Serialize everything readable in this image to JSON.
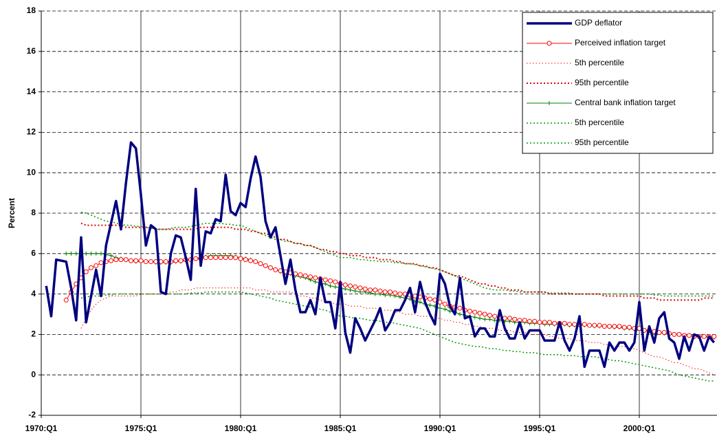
{
  "chart_data": {
    "type": "line",
    "y_label": "Percent",
    "categories": [
      "1970:Q1",
      null,
      null,
      null,
      null,
      null,
      null,
      null,
      null,
      null,
      null,
      null,
      null,
      null,
      null,
      null,
      null,
      null,
      null,
      null,
      "1975:Q1",
      null,
      null,
      null,
      null,
      null,
      null,
      null,
      null,
      null,
      null,
      null,
      null,
      null,
      null,
      null,
      null,
      null,
      null,
      null,
      "1980:Q1",
      null,
      null,
      null,
      null,
      null,
      null,
      null,
      null,
      null,
      null,
      null,
      null,
      null,
      null,
      null,
      null,
      null,
      null,
      null,
      "1985:Q1",
      null,
      null,
      null,
      null,
      null,
      null,
      null,
      null,
      null,
      null,
      null,
      null,
      null,
      null,
      null,
      null,
      null,
      null,
      null,
      "1990:Q1",
      null,
      null,
      null,
      null,
      null,
      null,
      null,
      null,
      null,
      null,
      null,
      null,
      null,
      null,
      null,
      null,
      null,
      null,
      null,
      "1995:Q1",
      null,
      null,
      null,
      null,
      null,
      null,
      null,
      null,
      null,
      null,
      null,
      null,
      null,
      null,
      null,
      null,
      null,
      null,
      null,
      "2000:Q1",
      null,
      null,
      null,
      null,
      null,
      null,
      null,
      null,
      null,
      null,
      null,
      null,
      null,
      null,
      null
    ],
    "ylim": [
      -2,
      18
    ],
    "yticks": [
      -2,
      0,
      2,
      4,
      6,
      8,
      10,
      12,
      14,
      16,
      18
    ],
    "grid": true,
    "legend": "top-right",
    "series": [
      {
        "name": "GDP deflator",
        "color": "#000080",
        "width": 3.5,
        "dash": "solid",
        "marker": "none",
        "values": [
          null,
          4.4,
          2.9,
          5.7,
          5.65,
          5.6,
          4.3,
          2.7,
          6.8,
          2.6,
          3.9,
          5.2,
          3.9,
          6.4,
          7.5,
          8.6,
          7.2,
          9.5,
          11.5,
          11.2,
          8.9,
          6.4,
          7.4,
          7.2,
          4.1,
          4.0,
          6.0,
          6.9,
          6.8,
          5.8,
          4.7,
          9.2,
          5.4,
          7.1,
          7.0,
          7.7,
          7.6,
          9.9,
          8.1,
          7.9,
          8.5,
          8.3,
          9.7,
          10.8,
          9.8,
          7.6,
          6.8,
          7.3,
          5.9,
          4.5,
          5.7,
          4.2,
          3.1,
          3.1,
          3.7,
          3.0,
          4.8,
          3.6,
          3.6,
          2.3,
          4.6,
          2.1,
          1.1,
          2.8,
          2.3,
          1.7,
          2.2,
          2.7,
          3.3,
          2.2,
          2.6,
          3.2,
          3.2,
          3.7,
          4.3,
          3.1,
          4.6,
          3.6,
          3.0,
          2.5,
          5.0,
          4.5,
          3.4,
          3.0,
          4.8,
          2.8,
          2.9,
          1.9,
          2.3,
          2.3,
          1.9,
          1.9,
          3.2,
          2.3,
          1.8,
          1.8,
          2.6,
          1.8,
          2.2,
          2.2,
          2.2,
          1.7,
          1.7,
          1.7,
          2.6,
          1.7,
          1.2,
          1.8,
          2.9,
          0.4,
          1.2,
          1.2,
          1.2,
          0.4,
          1.6,
          1.2,
          1.6,
          1.6,
          1.2,
          1.6,
          3.6,
          1.2,
          2.4,
          1.6,
          2.8,
          3.1,
          1.8,
          1.6,
          0.8,
          1.9,
          1.2,
          2.0,
          1.9,
          1.2,
          1.9,
          1.6
        ]
      },
      {
        "name": "Perceived inflation target",
        "color": "#ff0000",
        "width": 1,
        "dash": "solid",
        "marker": "circle",
        "values": [
          null,
          null,
          null,
          null,
          null,
          3.7,
          4.1,
          4.5,
          4.8,
          5.1,
          5.3,
          5.4,
          5.55,
          5.6,
          5.65,
          5.7,
          5.7,
          5.7,
          5.65,
          5.65,
          5.65,
          5.6,
          5.6,
          5.6,
          5.6,
          5.6,
          5.6,
          5.65,
          5.65,
          5.7,
          5.7,
          5.75,
          5.75,
          5.8,
          5.8,
          5.8,
          5.8,
          5.8,
          5.8,
          5.8,
          5.75,
          5.7,
          5.65,
          5.6,
          5.5,
          5.4,
          5.3,
          5.2,
          5.15,
          5.1,
          5.05,
          5.0,
          4.95,
          4.9,
          4.85,
          4.8,
          4.75,
          4.7,
          4.65,
          4.6,
          4.5,
          4.45,
          4.4,
          4.35,
          4.3,
          4.25,
          4.2,
          4.2,
          4.15,
          4.1,
          4.1,
          4.05,
          4.0,
          4.0,
          3.95,
          3.9,
          3.85,
          3.8,
          3.75,
          3.7,
          3.6,
          3.5,
          3.4,
          3.35,
          3.3,
          3.2,
          3.15,
          3.1,
          3.05,
          3.0,
          2.95,
          2.9,
          2.85,
          2.8,
          2.8,
          2.75,
          2.7,
          2.7,
          2.65,
          2.65,
          2.6,
          2.6,
          2.6,
          2.55,
          2.55,
          2.55,
          2.5,
          2.5,
          2.5,
          2.5,
          2.45,
          2.45,
          2.45,
          2.4,
          2.4,
          2.4,
          2.4,
          2.35,
          2.35,
          2.3,
          2.3,
          2.2,
          2.2,
          2.15,
          2.1,
          2.1,
          2.05,
          2.0,
          2.0,
          1.95,
          1.95,
          1.9,
          1.9,
          1.9,
          1.9,
          1.9
        ]
      },
      {
        "name": "5th percentile",
        "color": "#ff0000",
        "width": 1,
        "dash": "dotted",
        "marker": "none",
        "values": [
          null,
          null,
          null,
          null,
          null,
          null,
          null,
          null,
          2.3,
          2.8,
          3.2,
          3.5,
          3.7,
          3.8,
          3.9,
          3.9,
          3.9,
          3.9,
          3.9,
          3.9,
          4.0,
          4.0,
          4.0,
          4.0,
          4.0,
          4.0,
          4.1,
          4.1,
          4.2,
          4.2,
          4.2,
          4.3,
          4.3,
          4.3,
          4.3,
          4.3,
          4.3,
          4.3,
          4.3,
          4.3,
          4.3,
          4.3,
          4.3,
          4.2,
          4.2,
          4.2,
          4.1,
          4.1,
          4.1,
          4.1,
          4.1,
          4.0,
          3.9,
          3.9,
          3.8,
          3.8,
          3.7,
          3.6,
          3.6,
          3.5,
          3.5,
          3.5,
          3.4,
          3.4,
          3.4,
          3.3,
          3.3,
          3.3,
          3.2,
          3.2,
          3.2,
          3.1,
          3.1,
          3.0,
          3.0,
          3.0,
          2.9,
          2.9,
          2.9,
          2.8,
          2.8,
          2.7,
          2.7,
          2.6,
          2.6,
          2.5,
          2.5,
          2.4,
          2.4,
          2.3,
          2.3,
          2.3,
          2.2,
          2.2,
          2.2,
          2.1,
          2.1,
          2.1,
          2.0,
          2.0,
          2.0,
          2.0,
          1.9,
          1.9,
          1.8,
          1.8,
          1.8,
          1.7,
          1.7,
          1.7,
          1.6,
          1.6,
          1.6,
          1.5,
          1.5,
          1.4,
          1.4,
          1.4,
          1.3,
          1.3,
          1.2,
          1.1,
          1.0,
          0.9,
          0.9,
          0.8,
          0.7,
          0.6,
          0.6,
          0.5,
          0.4,
          0.3,
          0.3,
          0.2,
          0.1,
          0.0
        ]
      },
      {
        "name": "95th percentile",
        "color": "#dd0000",
        "width": 2,
        "dash": "dotted",
        "marker": "none",
        "values": [
          null,
          null,
          null,
          null,
          null,
          null,
          null,
          null,
          7.5,
          7.4,
          7.4,
          7.4,
          7.4,
          7.4,
          7.4,
          7.4,
          7.4,
          7.3,
          7.3,
          7.3,
          7.3,
          7.3,
          7.3,
          7.2,
          7.2,
          7.2,
          7.2,
          7.2,
          7.2,
          7.2,
          7.2,
          7.2,
          7.3,
          7.3,
          7.3,
          7.3,
          7.3,
          7.3,
          7.3,
          7.2,
          7.2,
          7.2,
          7.1,
          7.1,
          7.0,
          7.0,
          6.9,
          6.8,
          6.7,
          6.7,
          6.6,
          6.5,
          6.5,
          6.4,
          6.4,
          6.3,
          6.2,
          6.2,
          6.1,
          6.1,
          6.0,
          6.0,
          5.9,
          5.9,
          5.9,
          5.8,
          5.8,
          5.8,
          5.7,
          5.7,
          5.7,
          5.6,
          5.6,
          5.5,
          5.5,
          5.5,
          5.4,
          5.4,
          5.3,
          5.3,
          5.2,
          5.1,
          5.0,
          4.9,
          4.9,
          4.8,
          4.7,
          4.6,
          4.5,
          4.5,
          4.4,
          4.4,
          4.3,
          4.3,
          4.2,
          4.2,
          4.2,
          4.1,
          4.1,
          4.1,
          4.1,
          4.1,
          4.0,
          4.0,
          4.0,
          4.0,
          4.0,
          4.0,
          4.0,
          4.0,
          4.0,
          4.0,
          4.0,
          3.9,
          3.9,
          3.9,
          3.9,
          3.9,
          3.9,
          3.9,
          3.9,
          3.8,
          3.8,
          3.8,
          3.7,
          3.7,
          3.7,
          3.7,
          3.7,
          3.7,
          3.7,
          3.7,
          3.7,
          3.8,
          3.8,
          3.8
        ]
      },
      {
        "name": "Central bank inflation target",
        "color": "#008000",
        "width": 1,
        "dash": "solid",
        "marker": "plus",
        "values": [
          null,
          null,
          null,
          null,
          null,
          6.0,
          6.0,
          6.0,
          6.0,
          6.0,
          6.0,
          6.0,
          6.0,
          5.95,
          5.9,
          5.8,
          5.75,
          5.7,
          5.65,
          5.6,
          5.6,
          5.6,
          5.6,
          5.55,
          5.55,
          5.55,
          5.55,
          5.6,
          5.6,
          5.65,
          5.7,
          5.75,
          5.8,
          5.85,
          5.9,
          5.9,
          5.9,
          5.9,
          5.9,
          5.85,
          5.8,
          5.75,
          5.7,
          5.6,
          5.5,
          5.4,
          5.3,
          5.2,
          5.1,
          5.05,
          5.0,
          4.9,
          4.85,
          4.8,
          4.7,
          4.6,
          4.55,
          4.5,
          4.4,
          4.35,
          4.3,
          4.25,
          4.2,
          4.15,
          4.1,
          4.1,
          4.05,
          4.0,
          4.0,
          3.95,
          3.95,
          3.9,
          3.85,
          3.8,
          3.75,
          3.65,
          3.6,
          3.5,
          3.45,
          3.4,
          3.3,
          3.25,
          3.15,
          3.1,
          3.0,
          2.95,
          2.9,
          2.85,
          2.8,
          2.75,
          2.75,
          2.7,
          2.7,
          2.65,
          2.65,
          2.6,
          2.6,
          2.6,
          2.55,
          2.55,
          2.55,
          2.5,
          2.5,
          2.5,
          2.5,
          2.5,
          2.45,
          2.45,
          2.45,
          2.45,
          2.45,
          2.4,
          2.4,
          2.4,
          2.4,
          2.35,
          2.35,
          2.3,
          2.3,
          2.25,
          2.2,
          2.2,
          2.15,
          2.1,
          2.1,
          2.05,
          2.0,
          2.0,
          2.0,
          1.95,
          1.95,
          1.9,
          1.9,
          1.9,
          1.85,
          1.85
        ]
      },
      {
        "name": "5th percentile",
        "color": "#009900",
        "width": 1.5,
        "dash": "dotted",
        "marker": "none",
        "values": [
          null,
          null,
          null,
          null,
          null,
          null,
          null,
          null,
          3.8,
          3.85,
          3.9,
          3.9,
          3.9,
          3.95,
          3.95,
          4.0,
          4.0,
          4.0,
          4.0,
          4.0,
          4.0,
          4.0,
          4.0,
          4.0,
          4.0,
          4.0,
          4.0,
          4.0,
          4.0,
          4.0,
          4.05,
          4.05,
          4.05,
          4.1,
          4.1,
          4.1,
          4.1,
          4.1,
          4.1,
          4.1,
          4.1,
          4.05,
          4.0,
          3.95,
          3.9,
          3.85,
          3.8,
          3.7,
          3.65,
          3.6,
          3.55,
          3.5,
          3.45,
          3.4,
          3.35,
          3.3,
          3.25,
          3.2,
          3.1,
          3.0,
          2.9,
          2.9,
          2.85,
          2.8,
          2.8,
          2.75,
          2.7,
          2.7,
          2.65,
          2.6,
          2.6,
          2.55,
          2.5,
          2.45,
          2.4,
          2.35,
          2.3,
          2.2,
          2.1,
          2.0,
          1.9,
          1.8,
          1.7,
          1.6,
          1.55,
          1.5,
          1.45,
          1.4,
          1.4,
          1.35,
          1.3,
          1.3,
          1.25,
          1.2,
          1.2,
          1.15,
          1.15,
          1.1,
          1.1,
          1.1,
          1.05,
          1.0,
          1.0,
          1.0,
          1.0,
          0.95,
          0.95,
          0.95,
          0.9,
          0.9,
          0.9,
          0.9,
          0.85,
          0.8,
          0.75,
          0.7,
          0.7,
          0.65,
          0.6,
          0.55,
          0.5,
          0.45,
          0.4,
          0.35,
          0.3,
          0.25,
          0.2,
          0.1,
          0.0,
          -0.05,
          -0.1,
          -0.15,
          -0.2,
          -0.25,
          -0.3,
          -0.3
        ]
      },
      {
        "name": "95th percentile",
        "color": "#009900",
        "width": 1.5,
        "dash": "dotted",
        "marker": "none",
        "values": [
          null,
          null,
          null,
          null,
          null,
          null,
          null,
          null,
          8.05,
          8.0,
          7.9,
          7.8,
          7.7,
          7.6,
          7.6,
          7.5,
          7.45,
          7.4,
          7.4,
          7.35,
          7.35,
          7.3,
          7.25,
          7.2,
          7.2,
          7.2,
          7.25,
          7.3,
          7.3,
          7.3,
          7.35,
          7.4,
          7.45,
          7.5,
          7.5,
          7.5,
          7.5,
          7.45,
          7.45,
          7.4,
          7.4,
          7.3,
          7.2,
          7.1,
          7.0,
          6.9,
          6.8,
          6.7,
          6.7,
          6.6,
          6.6,
          6.5,
          6.5,
          6.4,
          6.4,
          6.3,
          6.2,
          6.1,
          6.0,
          5.9,
          5.8,
          5.8,
          5.8,
          5.75,
          5.7,
          5.7,
          5.65,
          5.65,
          5.6,
          5.6,
          5.6,
          5.55,
          5.55,
          5.5,
          5.5,
          5.45,
          5.4,
          5.35,
          5.3,
          5.25,
          5.2,
          5.1,
          5.0,
          4.9,
          4.8,
          4.7,
          4.6,
          4.5,
          4.4,
          4.3,
          4.25,
          4.2,
          4.2,
          4.2,
          4.15,
          4.15,
          4.1,
          4.1,
          4.1,
          4.1,
          4.1,
          4.1,
          4.05,
          4.05,
          4.05,
          4.05,
          4.05,
          4.0,
          4.0,
          4.0,
          4.0,
          4.0,
          4.0,
          4.0,
          4.0,
          4.0,
          4.0,
          4.0,
          4.0,
          4.0,
          4.0,
          4.0,
          4.0,
          3.95,
          3.95,
          3.9,
          3.9,
          3.9,
          3.9,
          3.9,
          3.9,
          3.9,
          3.9,
          3.9,
          3.9,
          3.9
        ]
      }
    ]
  }
}
